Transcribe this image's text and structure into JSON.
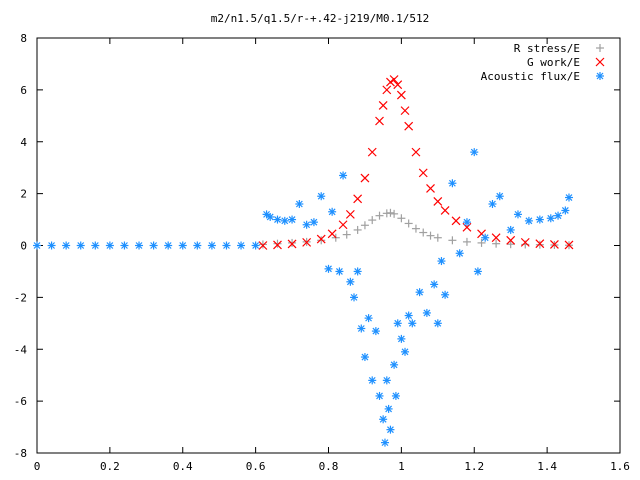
{
  "chart_data": {
    "type": "scatter",
    "title": "m2/n1.5/q1.5/r-+.42-j219/M0.1/512",
    "xlabel": "",
    "ylabel": "",
    "xlim": [
      0,
      1.6
    ],
    "ylim": [
      -8,
      8
    ],
    "xticks": [
      "0",
      "0.2",
      "0.4",
      "0.6",
      "0.8",
      "1",
      "1.2",
      "1.4",
      "1.6"
    ],
    "yticks": [
      "-8",
      "-6",
      "-4",
      "-2",
      "0",
      "2",
      "4",
      "6",
      "8"
    ],
    "grid": false,
    "legend_position": "top-right",
    "series": [
      {
        "name": "R stress/E",
        "marker": "plus",
        "color": "#a0a0a0",
        "x": [
          0.62,
          0.66,
          0.7,
          0.74,
          0.78,
          0.82,
          0.85,
          0.88,
          0.9,
          0.92,
          0.94,
          0.96,
          0.97,
          0.98,
          1.0,
          1.02,
          1.04,
          1.06,
          1.08,
          1.1,
          1.14,
          1.18,
          1.22,
          1.26,
          1.3,
          1.34,
          1.38,
          1.42,
          1.46
        ],
        "y": [
          0.04,
          0.07,
          0.1,
          0.14,
          0.2,
          0.3,
          0.42,
          0.6,
          0.78,
          0.98,
          1.15,
          1.24,
          1.26,
          1.22,
          1.05,
          0.85,
          0.65,
          0.5,
          0.38,
          0.3,
          0.2,
          0.14,
          0.1,
          0.07,
          0.05,
          0.04,
          0.03,
          0.02,
          0.01
        ]
      },
      {
        "name": "G work/E",
        "marker": "x",
        "color": "#ff0000",
        "x": [
          0.62,
          0.66,
          0.7,
          0.74,
          0.78,
          0.81,
          0.84,
          0.86,
          0.88,
          0.9,
          0.92,
          0.94,
          0.95,
          0.96,
          0.97,
          0.98,
          0.99,
          1.0,
          1.01,
          1.02,
          1.04,
          1.06,
          1.08,
          1.1,
          1.12,
          1.15,
          1.18,
          1.22,
          1.26,
          1.3,
          1.34,
          1.38,
          1.42,
          1.46
        ],
        "y": [
          0.0,
          0.02,
          0.06,
          0.12,
          0.25,
          0.45,
          0.8,
          1.2,
          1.8,
          2.6,
          3.6,
          4.8,
          5.4,
          6.0,
          6.3,
          6.4,
          6.2,
          5.8,
          5.2,
          4.6,
          3.6,
          2.8,
          2.2,
          1.7,
          1.35,
          0.95,
          0.7,
          0.45,
          0.3,
          0.2,
          0.12,
          0.07,
          0.04,
          0.02
        ]
      },
      {
        "name": "Acoustic flux/E",
        "marker": "star",
        "color": "#1e90ff",
        "x": [
          0.0,
          0.04,
          0.08,
          0.12,
          0.16,
          0.2,
          0.24,
          0.28,
          0.32,
          0.36,
          0.4,
          0.44,
          0.48,
          0.52,
          0.56,
          0.6,
          0.63,
          0.64,
          0.66,
          0.68,
          0.7,
          0.72,
          0.74,
          0.76,
          0.78,
          0.8,
          0.81,
          0.83,
          0.84,
          0.86,
          0.87,
          0.88,
          0.89,
          0.9,
          0.91,
          0.92,
          0.93,
          0.94,
          0.95,
          0.955,
          0.96,
          0.965,
          0.97,
          0.98,
          0.985,
          0.99,
          1.0,
          1.01,
          1.02,
          1.03,
          1.05,
          1.07,
          1.09,
          1.1,
          1.11,
          1.12,
          1.14,
          1.16,
          1.18,
          1.2,
          1.21,
          1.23,
          1.25,
          1.27,
          1.3,
          1.32,
          1.35,
          1.38,
          1.41,
          1.43,
          1.45,
          1.46
        ],
        "y": [
          0.0,
          0.0,
          0.0,
          0.0,
          0.0,
          0.0,
          0.0,
          0.0,
          0.0,
          0.0,
          0.0,
          0.0,
          0.0,
          0.0,
          0.0,
          0.0,
          1.2,
          1.1,
          1.0,
          0.95,
          1.0,
          1.6,
          0.8,
          0.9,
          1.9,
          -0.9,
          1.3,
          -1.0,
          2.7,
          -1.4,
          -2.0,
          -1.0,
          -3.2,
          -4.3,
          -2.8,
          -5.2,
          -3.3,
          -5.8,
          -6.7,
          -7.6,
          -5.2,
          -6.3,
          -7.1,
          -4.6,
          -5.8,
          -3.0,
          -3.6,
          -4.1,
          -2.7,
          -3.0,
          -1.8,
          -2.6,
          -1.5,
          -3.0,
          -0.6,
          -1.9,
          2.4,
          -0.3,
          0.9,
          3.6,
          -1.0,
          0.3,
          1.6,
          1.9,
          0.6,
          1.2,
          0.95,
          1.0,
          1.05,
          1.15,
          1.35,
          1.85
        ]
      }
    ]
  }
}
